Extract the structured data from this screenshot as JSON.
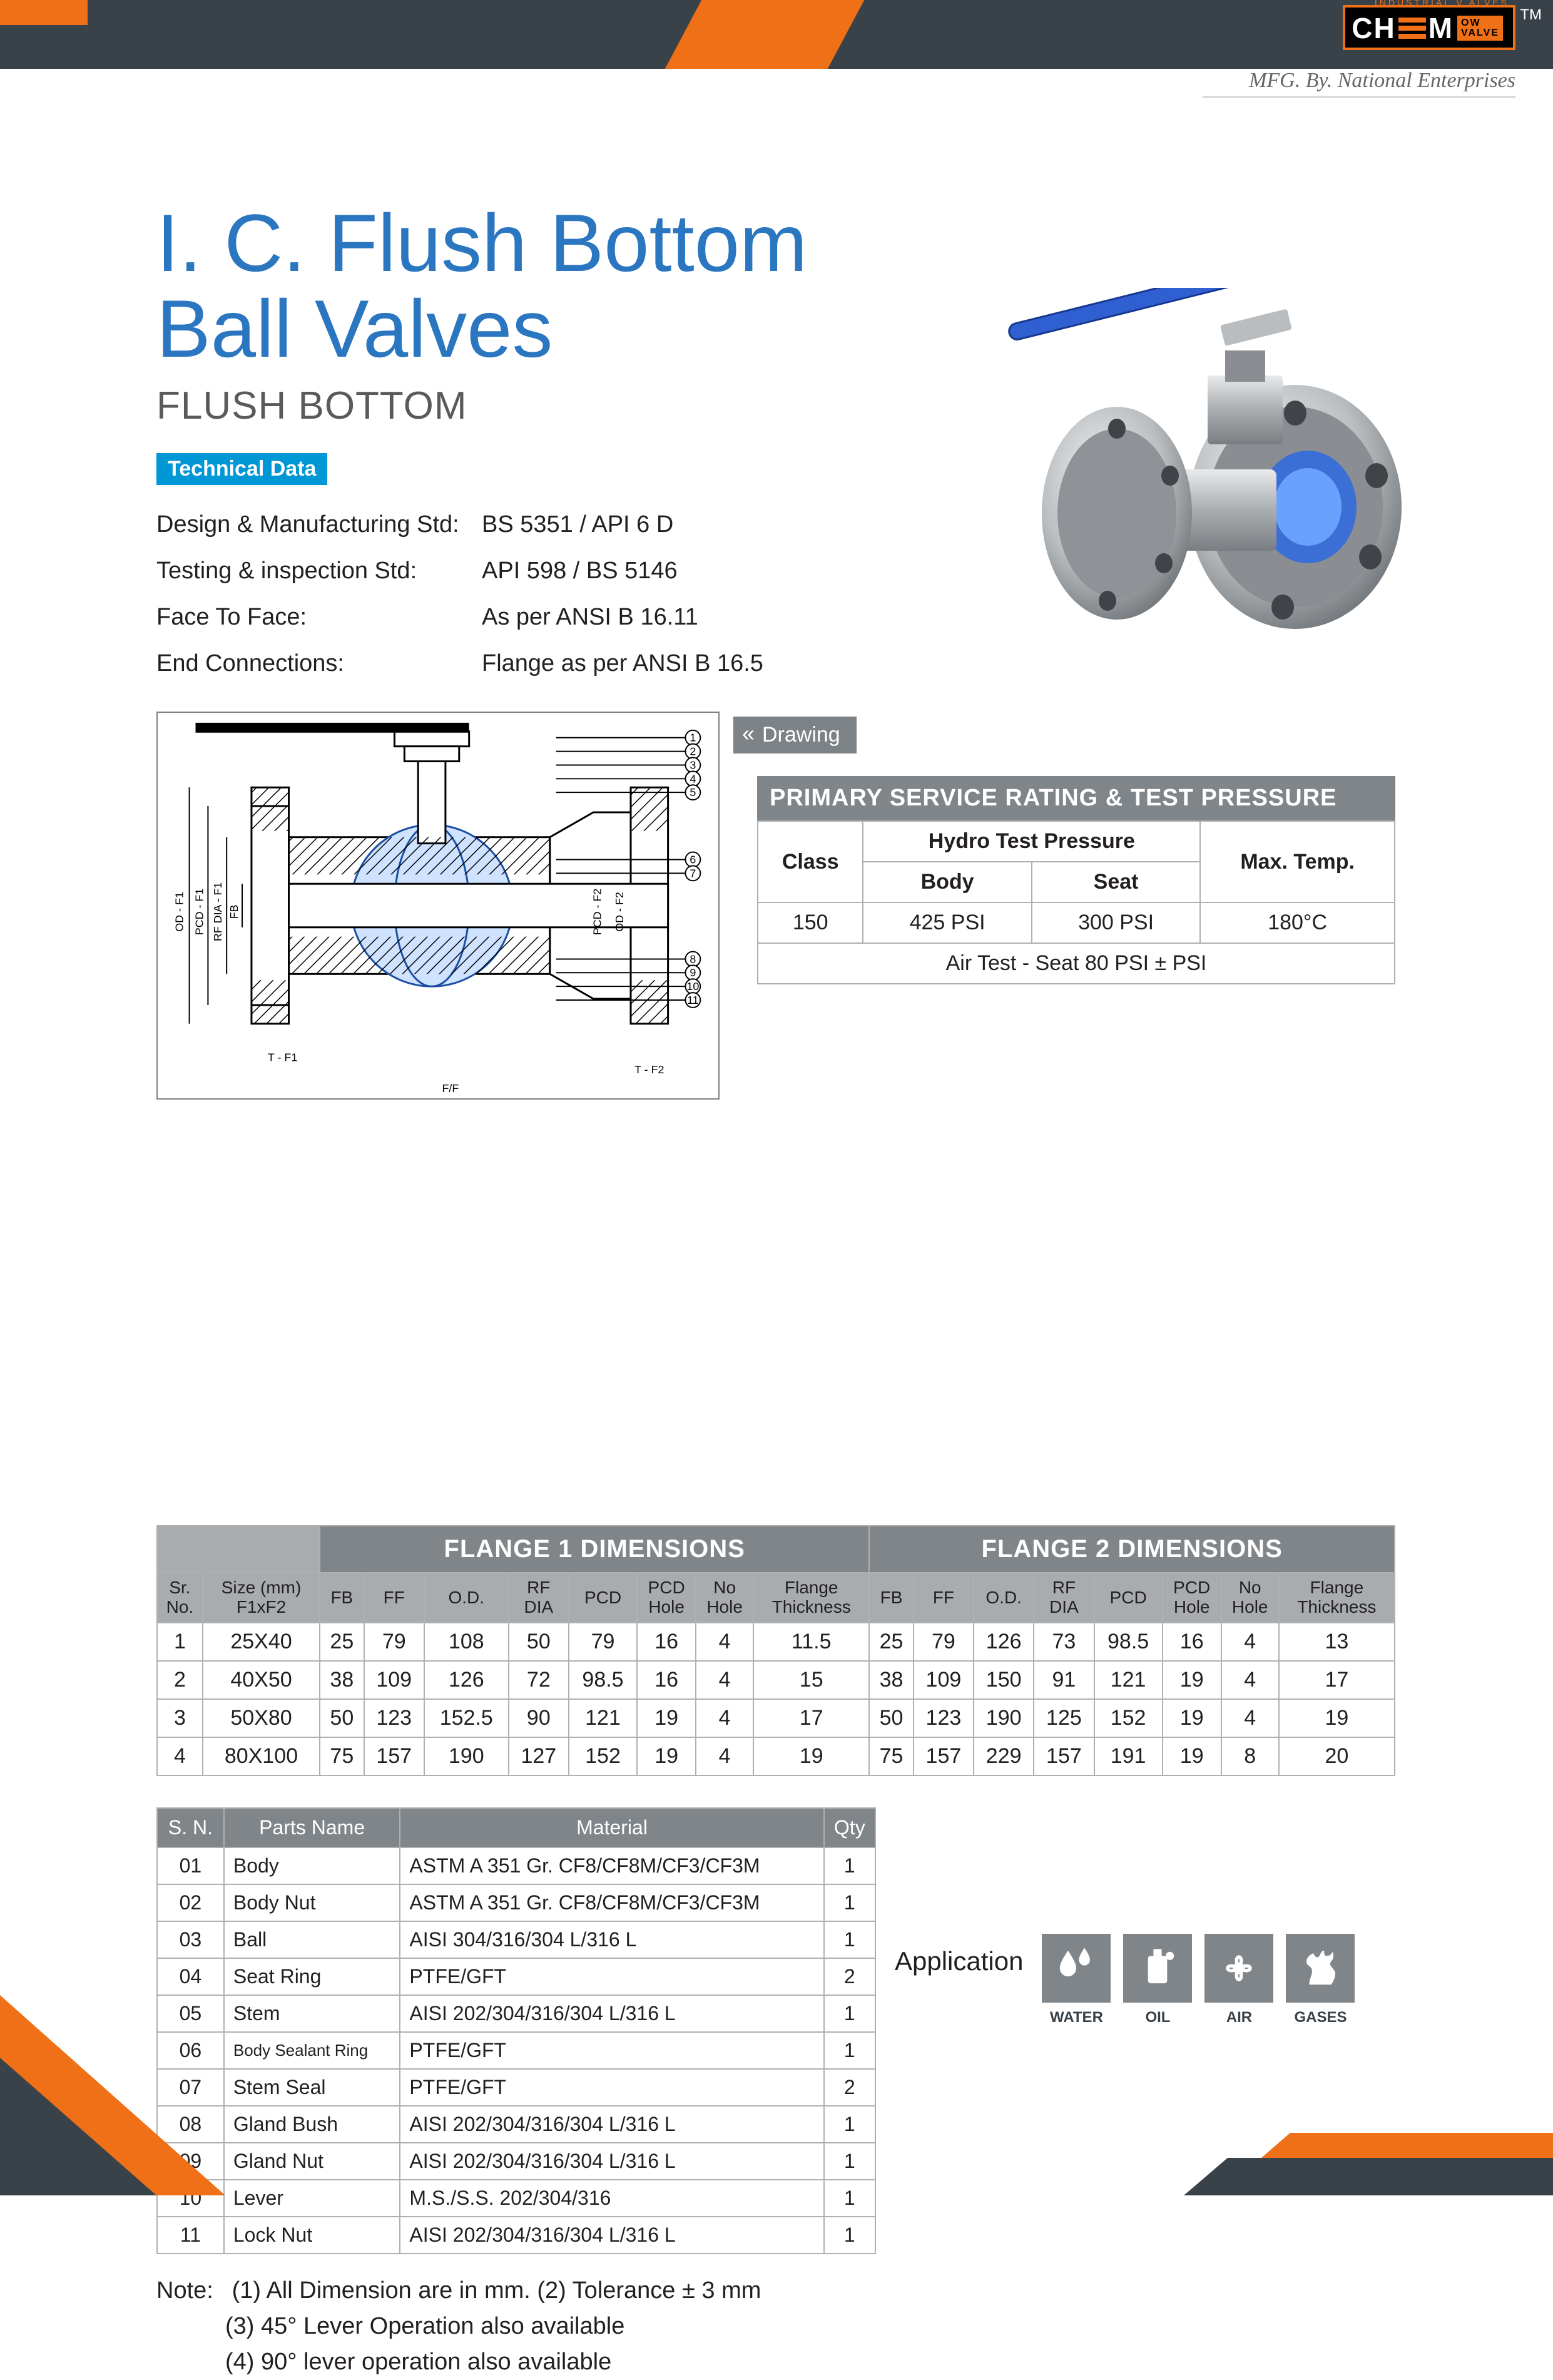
{
  "brand": {
    "topsmall": "INDUSTRIAL V  ALVES",
    "name_left": "CH",
    "name_mid": "M",
    "flow_top": "OW",
    "flow_bot": "VALVE",
    "tm": "TM",
    "mfg": "MFG. By. National Enterprises"
  },
  "title": {
    "line1": "I. C. Flush Bottom",
    "line2": "Ball Valves",
    "subtitle": "FLUSH BOTTOM"
  },
  "tech": {
    "badge": "Technical Data",
    "rows": [
      {
        "k": "Design & Manufacturing Std:",
        "v": "BS 5351 / API 6 D"
      },
      {
        "k": "Testing & inspection Std:",
        "v": "API 598 / BS 5146"
      },
      {
        "k": "Face To Face:",
        "v": "As per ANSI B 16.11"
      },
      {
        "k": "End Connections:",
        "v": "Flange as per ANSI B 16.5"
      }
    ]
  },
  "drawing_btn": "Drawing",
  "drawing_dim_labels": [
    "OD - F1",
    "PCD - F1",
    "RF DIA - F1",
    "FB",
    "PCD - F2",
    "OD - F2",
    "T - F1",
    "T - F2",
    "F/F"
  ],
  "drawing_callouts": [
    "1",
    "2",
    "3",
    "4",
    "5",
    "6",
    "7",
    "8",
    "9",
    "10",
    "11"
  ],
  "service": {
    "header": "PRIMARY SERVICE RATING & TEST PRESSURE",
    "cols": {
      "class": "Class",
      "hydro": "Hydro Test Pressure",
      "body": "Body",
      "seat": "Seat",
      "max": "Max. Temp."
    },
    "row": {
      "class": "150",
      "body": "425 PSI",
      "seat": "300 PSI",
      "max": "180°C"
    },
    "air": "Air Test - Seat 80 PSI ± PSI"
  },
  "dimensions": {
    "group1": "FLANGE 1 DIMENSIONS",
    "group2": "FLANGE 2 DIMENSIONS",
    "sub": [
      "Sr.\nNo.",
      "Size (mm)\nF1xF2",
      "FB",
      "FF",
      "O.D.",
      "RF\nDIA",
      "PCD",
      "PCD\nHole",
      "No\nHole",
      "Flange\nThickness",
      "FB",
      "FF",
      "O.D.",
      "RF\nDIA",
      "PCD",
      "PCD\nHole",
      "No\nHole",
      "Flange\nThickness"
    ],
    "rows": [
      [
        "1",
        "25X40",
        "25",
        "79",
        "108",
        "50",
        "79",
        "16",
        "4",
        "11.5",
        "25",
        "79",
        "126",
        "73",
        "98.5",
        "16",
        "4",
        "13"
      ],
      [
        "2",
        "40X50",
        "38",
        "109",
        "126",
        "72",
        "98.5",
        "16",
        "4",
        "15",
        "38",
        "109",
        "150",
        "91",
        "121",
        "19",
        "4",
        "17"
      ],
      [
        "3",
        "50X80",
        "50",
        "123",
        "152.5",
        "90",
        "121",
        "19",
        "4",
        "17",
        "50",
        "123",
        "190",
        "125",
        "152",
        "19",
        "4",
        "19"
      ],
      [
        "4",
        "80X100",
        "75",
        "157",
        "190",
        "127",
        "152",
        "19",
        "4",
        "19",
        "75",
        "157",
        "229",
        "157",
        "191",
        "19",
        "8",
        "20"
      ]
    ]
  },
  "parts": {
    "headers": [
      "S. N.",
      "Parts Name",
      "Material",
      "Qty"
    ],
    "rows": [
      [
        "01",
        "Body",
        "ASTM A 351 Gr. CF8/CF8M/CF3/CF3M",
        "1"
      ],
      [
        "02",
        "Body Nut",
        "ASTM A 351 Gr. CF8/CF8M/CF3/CF3M",
        "1"
      ],
      [
        "03",
        "Ball",
        "AISI 304/316/304 L/316 L",
        "1"
      ],
      [
        "04",
        "Seat Ring",
        "PTFE/GFT",
        "2"
      ],
      [
        "05",
        "Stem",
        "AISI 202/304/316/304 L/316 L",
        "1"
      ],
      [
        "06",
        "Body Sealant Ring",
        "PTFE/GFT",
        "1"
      ],
      [
        "07",
        "Stem Seal",
        "PTFE/GFT",
        "2"
      ],
      [
        "08",
        "Gland Bush",
        "AISI 202/304/316/304 L/316 L",
        "1"
      ],
      [
        "09",
        "Gland Nut",
        "AISI 202/304/316/304 L/316 L",
        "1"
      ],
      [
        "10",
        "Lever",
        "M.S./S.S. 202/304/316",
        "1"
      ],
      [
        "11",
        "Lock Nut",
        "AISI 202/304/316/304 L/316 L",
        "1"
      ]
    ]
  },
  "notes": {
    "label": "Note:",
    "lines": [
      "(1) All Dimension are in mm.  (2) Tolerance ± 3 mm",
      "(3) 45° Lever Operation also available",
      "(4) 90° lever operation also available"
    ]
  },
  "app": {
    "label": "Application",
    "items": [
      {
        "name": "water-icon",
        "label": "WATER"
      },
      {
        "name": "oil-icon",
        "label": "OIL"
      },
      {
        "name": "air-icon",
        "label": "AIR"
      },
      {
        "name": "gases-icon",
        "label": "GASES"
      }
    ]
  }
}
